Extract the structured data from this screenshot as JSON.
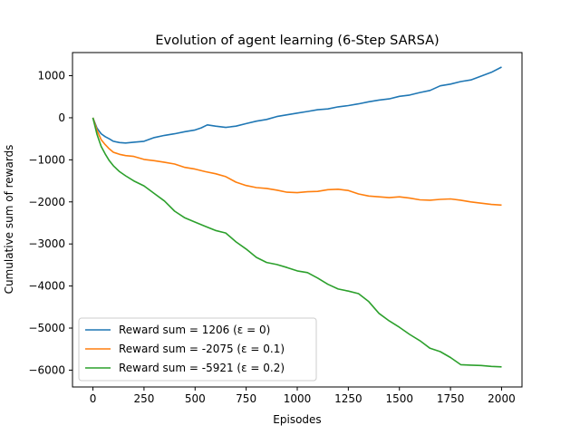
{
  "chart_data": {
    "type": "line",
    "title": "Evolution of agent learning (6-Step SARSA)",
    "xlabel": "Episodes",
    "ylabel": "Cumulative sum of rewards",
    "xlim": [
      -100,
      2100
    ],
    "ylim": [
      -6400,
      1550
    ],
    "x_ticks": [
      0,
      250,
      500,
      750,
      1000,
      1250,
      1500,
      1750,
      2000
    ],
    "y_ticks": [
      1000,
      0,
      -1000,
      -2000,
      -3000,
      -4000,
      -5000,
      -6000
    ],
    "x_tick_labels": [
      "0",
      "250",
      "500",
      "750",
      "1000",
      "1250",
      "1500",
      "1750",
      "2000"
    ],
    "y_tick_labels": [
      "1000",
      "0",
      "−1000",
      "−2000",
      "−3000",
      "−4000",
      "−5000",
      "−6000"
    ],
    "grid": false,
    "legend_position": "lower-left",
    "series": [
      {
        "name": "Reward sum = 1206 (ε = 0)",
        "color": "#1f77b4",
        "x": [
          0,
          20,
          40,
          60,
          80,
          100,
          130,
          160,
          200,
          250,
          300,
          350,
          400,
          450,
          500,
          530,
          560,
          600,
          650,
          700,
          750,
          800,
          850,
          900,
          950,
          1000,
          1050,
          1100,
          1150,
          1200,
          1250,
          1300,
          1350,
          1400,
          1450,
          1500,
          1550,
          1600,
          1650,
          1700,
          1750,
          1800,
          1850,
          1900,
          1950,
          2000
        ],
        "y": [
          0,
          -250,
          -380,
          -450,
          -500,
          -560,
          -590,
          -600,
          -580,
          -560,
          -470,
          -420,
          -380,
          -330,
          -290,
          -240,
          -170,
          -200,
          -230,
          -200,
          -140,
          -80,
          -40,
          30,
          70,
          110,
          150,
          190,
          210,
          260,
          290,
          330,
          380,
          420,
          450,
          510,
          540,
          600,
          650,
          760,
          800,
          860,
          900,
          990,
          1080,
          1206
        ]
      },
      {
        "name": "Reward sum = -2075 (ε = 0.1)",
        "color": "#ff7f0e",
        "x": [
          0,
          20,
          40,
          60,
          80,
          100,
          130,
          160,
          200,
          250,
          300,
          350,
          400,
          450,
          500,
          550,
          600,
          650,
          700,
          750,
          800,
          850,
          900,
          950,
          1000,
          1050,
          1100,
          1150,
          1200,
          1250,
          1300,
          1350,
          1400,
          1450,
          1500,
          1550,
          1600,
          1650,
          1700,
          1750,
          1800,
          1850,
          1900,
          1950,
          2000
        ],
        "y": [
          0,
          -300,
          -520,
          -640,
          -740,
          -820,
          -870,
          -900,
          -920,
          -990,
          -1020,
          -1060,
          -1100,
          -1180,
          -1220,
          -1280,
          -1330,
          -1400,
          -1530,
          -1610,
          -1660,
          -1680,
          -1720,
          -1770,
          -1780,
          -1760,
          -1750,
          -1710,
          -1700,
          -1730,
          -1810,
          -1860,
          -1880,
          -1900,
          -1880,
          -1910,
          -1950,
          -1960,
          -1940,
          -1930,
          -1960,
          -2000,
          -2030,
          -2060,
          -2075
        ]
      },
      {
        "name": "Reward sum = -5921 (ε = 0.2)",
        "color": "#2ca02c",
        "x": [
          0,
          20,
          40,
          60,
          80,
          100,
          130,
          160,
          200,
          250,
          300,
          350,
          400,
          450,
          500,
          550,
          600,
          650,
          700,
          750,
          800,
          850,
          900,
          950,
          1000,
          1050,
          1100,
          1150,
          1200,
          1250,
          1300,
          1350,
          1400,
          1450,
          1500,
          1550,
          1600,
          1650,
          1700,
          1750,
          1800,
          1850,
          1900,
          1950,
          2000
        ],
        "y": [
          0,
          -400,
          -680,
          -860,
          -1020,
          -1140,
          -1280,
          -1380,
          -1500,
          -1620,
          -1800,
          -1980,
          -2220,
          -2380,
          -2480,
          -2580,
          -2680,
          -2740,
          -2950,
          -3120,
          -3320,
          -3440,
          -3490,
          -3560,
          -3640,
          -3680,
          -3810,
          -3960,
          -4070,
          -4120,
          -4180,
          -4370,
          -4650,
          -4830,
          -4980,
          -5150,
          -5300,
          -5480,
          -5560,
          -5700,
          -5870,
          -5880,
          -5890,
          -5910,
          -5921
        ]
      }
    ]
  }
}
